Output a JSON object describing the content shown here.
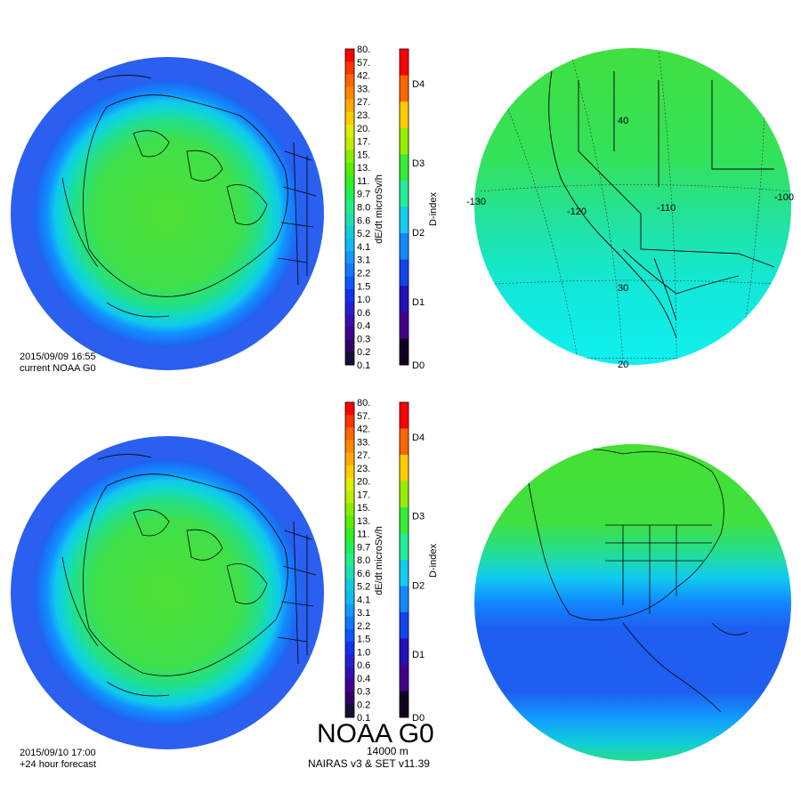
{
  "panels": [
    {
      "id": "top",
      "timestamp": "2015/09/09 16:55",
      "subtitle": "current NOAA G0"
    },
    {
      "id": "bottom",
      "timestamp": "2015/09/10 17:00",
      "subtitle": "+24 hour forecast"
    }
  ],
  "dose_scale": {
    "label": "dE/dt microSv/h",
    "ticks": [
      "80.",
      "57.",
      "42.",
      "33.",
      "27.",
      "23.",
      "20.",
      "17.",
      "15.",
      "13.",
      "11.",
      "9.7",
      "8.0",
      "6.6",
      "5.2",
      "4.1",
      "3.1",
      "2.2",
      "1.5",
      "1.0",
      "0.6",
      "0.4",
      "0.3",
      "0.2",
      "0.1"
    ],
    "colors": [
      "#ff0000",
      "#ff3300",
      "#ff6600",
      "#ff8800",
      "#ffaa00",
      "#ffcc00",
      "#ddee00",
      "#bbee00",
      "#88ee00",
      "#55ee00",
      "#33ee22",
      "#22ee55",
      "#22ee88",
      "#22ddaa",
      "#11ccdd",
      "#11bbee",
      "#1199ff",
      "#1177ff",
      "#1155ff",
      "#1133ee",
      "#2222cc",
      "#3311aa",
      "#440088",
      "#330066",
      "#111133"
    ]
  },
  "dindex_scale": {
    "label": "D-index",
    "ticks": [
      "D4",
      "D3",
      "D2",
      "D1",
      "D0"
    ],
    "colors": [
      "#ff0000",
      "#ff6600",
      "#ffcc00",
      "#99ee00",
      "#33ee33",
      "#22ee99",
      "#11ccee",
      "#1188ff",
      "#1144ee",
      "#2211bb",
      "#440088",
      "#110022"
    ]
  },
  "regional_map": {
    "lon_labels": [
      "-130",
      "-120",
      "-110",
      "-100"
    ],
    "lat_labels": [
      "40",
      "30",
      "20"
    ]
  },
  "footer": {
    "title": "NOAA G0",
    "altitude": "14000 m",
    "model": "NAIRAS v3 & SET v11.39"
  }
}
